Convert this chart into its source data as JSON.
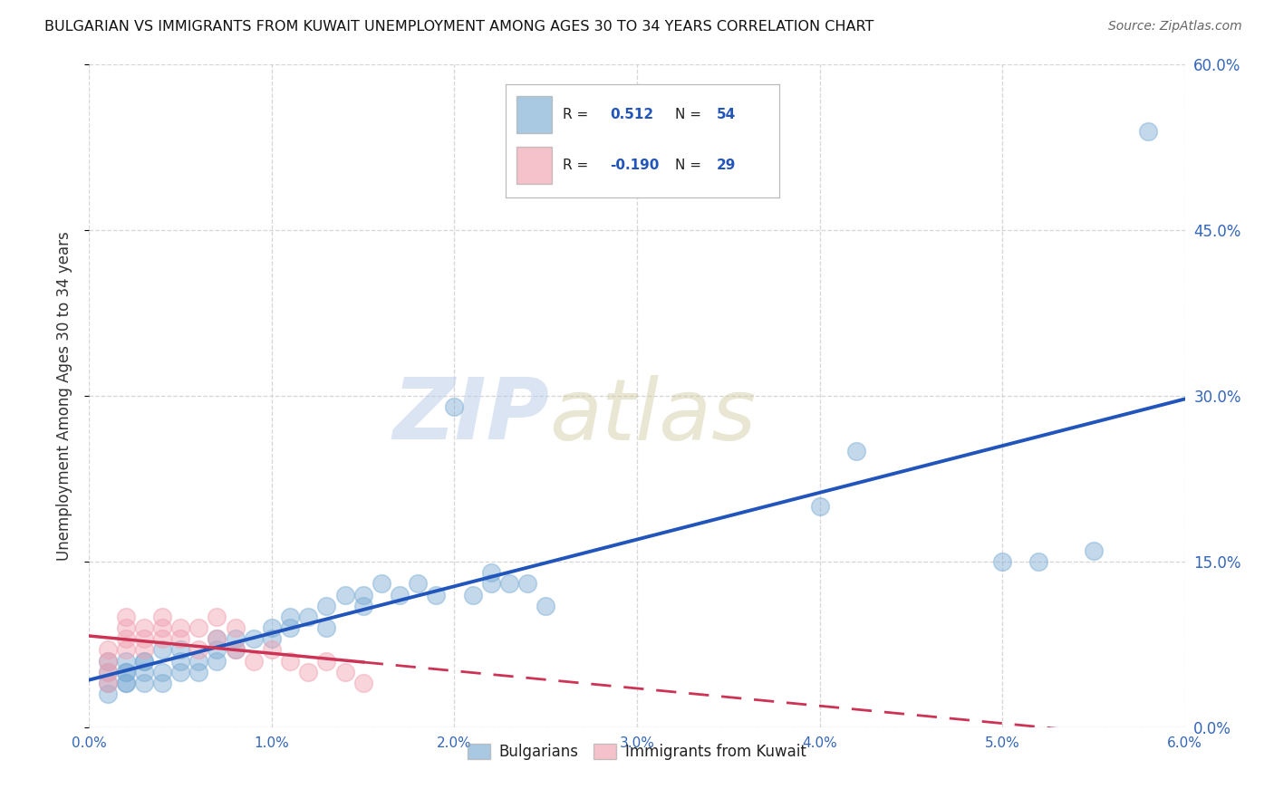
{
  "title": "BULGARIAN VS IMMIGRANTS FROM KUWAIT UNEMPLOYMENT AMONG AGES 30 TO 34 YEARS CORRELATION CHART",
  "source": "Source: ZipAtlas.com",
  "ylabel_label": "Unemployment Among Ages 30 to 34 years",
  "legend_label1": "Bulgarians",
  "legend_label2": "Immigrants from Kuwait",
  "R1": 0.512,
  "N1": 54,
  "R2": -0.19,
  "N2": 29,
  "blue_color": "#7BACD4",
  "pink_color": "#F0A0B0",
  "blue_line_color": "#2255BB",
  "pink_line_color": "#CC3355",
  "watermark_zip": "ZIP",
  "watermark_atlas": "atlas",
  "xlim": [
    0.0,
    0.06
  ],
  "ylim": [
    0.0,
    0.6
  ],
  "blue_scatter_x": [
    0.001,
    0.001,
    0.001,
    0.001,
    0.002,
    0.002,
    0.002,
    0.002,
    0.002,
    0.003,
    0.003,
    0.003,
    0.003,
    0.004,
    0.004,
    0.004,
    0.005,
    0.005,
    0.005,
    0.006,
    0.006,
    0.007,
    0.007,
    0.007,
    0.008,
    0.008,
    0.009,
    0.01,
    0.01,
    0.011,
    0.011,
    0.012,
    0.013,
    0.013,
    0.014,
    0.015,
    0.015,
    0.016,
    0.017,
    0.018,
    0.019,
    0.02,
    0.021,
    0.022,
    0.022,
    0.023,
    0.024,
    0.025,
    0.04,
    0.042,
    0.05,
    0.052,
    0.055,
    0.058
  ],
  "blue_scatter_y": [
    0.04,
    0.05,
    0.06,
    0.03,
    0.05,
    0.06,
    0.04,
    0.05,
    0.04,
    0.06,
    0.05,
    0.04,
    0.06,
    0.07,
    0.05,
    0.04,
    0.06,
    0.05,
    0.07,
    0.06,
    0.05,
    0.07,
    0.08,
    0.06,
    0.08,
    0.07,
    0.08,
    0.09,
    0.08,
    0.1,
    0.09,
    0.1,
    0.09,
    0.11,
    0.12,
    0.11,
    0.12,
    0.13,
    0.12,
    0.13,
    0.12,
    0.29,
    0.12,
    0.13,
    0.14,
    0.13,
    0.13,
    0.11,
    0.2,
    0.25,
    0.15,
    0.15,
    0.16,
    0.54
  ],
  "pink_scatter_x": [
    0.001,
    0.001,
    0.001,
    0.001,
    0.002,
    0.002,
    0.002,
    0.002,
    0.003,
    0.003,
    0.003,
    0.004,
    0.004,
    0.004,
    0.005,
    0.005,
    0.006,
    0.006,
    0.007,
    0.007,
    0.008,
    0.008,
    0.009,
    0.01,
    0.011,
    0.012,
    0.013,
    0.014,
    0.015
  ],
  "pink_scatter_y": [
    0.05,
    0.06,
    0.07,
    0.04,
    0.08,
    0.07,
    0.09,
    0.1,
    0.08,
    0.09,
    0.07,
    0.09,
    0.08,
    0.1,
    0.09,
    0.08,
    0.07,
    0.09,
    0.1,
    0.08,
    0.07,
    0.09,
    0.06,
    0.07,
    0.06,
    0.05,
    0.06,
    0.05,
    0.04
  ]
}
